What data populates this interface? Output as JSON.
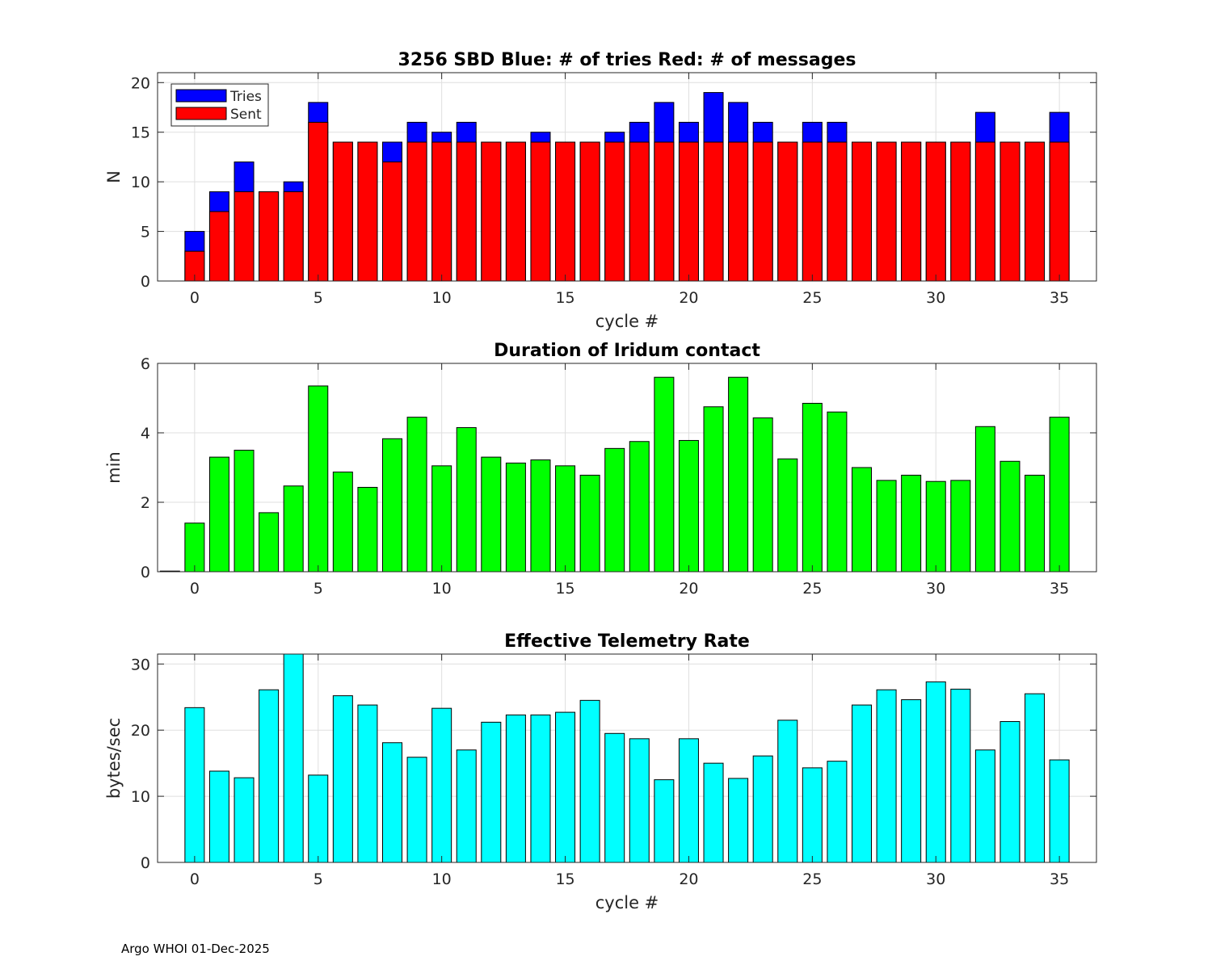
{
  "figure": {
    "footer": "Argo WHOI 01-Dec-2025"
  },
  "chart_data": [
    {
      "type": "bar",
      "stacked_overlay": true,
      "title": "3256 SBD  Blue: # of tries   Red: # of messages",
      "xlabel": "cycle #",
      "ylabel": "N",
      "xlim": [
        -1.5,
        36.5
      ],
      "ylim": [
        0,
        21
      ],
      "xticks": [
        0,
        5,
        10,
        15,
        20,
        25,
        30,
        35
      ],
      "yticks": [
        0,
        5,
        10,
        15,
        20
      ],
      "grid": true,
      "legend": {
        "placement": "top-left",
        "entries": [
          "Tries",
          "Sent"
        ]
      },
      "x": [
        0,
        1,
        2,
        3,
        4,
        5,
        6,
        7,
        8,
        9,
        10,
        11,
        12,
        13,
        14,
        15,
        16,
        17,
        18,
        19,
        20,
        21,
        22,
        23,
        24,
        25,
        26,
        27,
        28,
        29,
        30,
        31,
        32,
        33,
        34,
        35
      ],
      "series": [
        {
          "name": "Tries",
          "color": "#0000ff",
          "values": [
            5,
            9,
            12,
            9,
            10,
            18,
            14,
            14,
            14,
            16,
            15,
            16,
            14,
            14,
            15,
            14,
            14,
            15,
            16,
            18,
            16,
            19,
            18,
            16,
            14,
            16,
            16,
            14,
            14,
            14,
            14,
            14,
            17,
            14,
            14,
            17
          ]
        },
        {
          "name": "Sent",
          "color": "#ff0000",
          "values": [
            3,
            7,
            9,
            9,
            9,
            16,
            14,
            14,
            12,
            14,
            14,
            14,
            14,
            14,
            14,
            14,
            14,
            14,
            14,
            14,
            14,
            14,
            14,
            14,
            14,
            14,
            14,
            14,
            14,
            14,
            14,
            14,
            14,
            14,
            14,
            14
          ]
        }
      ]
    },
    {
      "type": "bar",
      "title": "Duration of Iridum contact",
      "xlabel": "",
      "ylabel": "min",
      "xlim": [
        -1.5,
        36.5
      ],
      "ylim": [
        0,
        6
      ],
      "xticks": [
        0,
        5,
        10,
        15,
        20,
        25,
        30,
        35
      ],
      "yticks": [
        0,
        2,
        4,
        6
      ],
      "grid": true,
      "x": [
        -1,
        0,
        1,
        2,
        3,
        4,
        5,
        6,
        7,
        8,
        9,
        10,
        11,
        12,
        13,
        14,
        15,
        16,
        17,
        18,
        19,
        20,
        21,
        22,
        23,
        24,
        25,
        26,
        27,
        28,
        29,
        30,
        31,
        32,
        33,
        34,
        35
      ],
      "series": [
        {
          "name": "duration",
          "color": "#00ff00",
          "values": [
            0,
            1.4,
            3.3,
            3.5,
            1.7,
            2.47,
            5.35,
            2.87,
            2.43,
            3.83,
            4.45,
            3.05,
            4.15,
            3.3,
            3.13,
            3.22,
            3.05,
            2.78,
            3.55,
            3.75,
            5.6,
            3.78,
            4.75,
            5.6,
            4.43,
            3.25,
            4.85,
            4.6,
            3.0,
            2.63,
            2.78,
            2.6,
            2.63,
            4.18,
            3.18,
            2.78,
            4.45
          ]
        }
      ]
    },
    {
      "type": "bar",
      "title": "Effective Telemetry Rate",
      "xlabel": "cycle #",
      "ylabel": "bytes/sec",
      "xlim": [
        -1.5,
        36.5
      ],
      "ylim": [
        0,
        31.5
      ],
      "xticks": [
        0,
        5,
        10,
        15,
        20,
        25,
        30,
        35
      ],
      "yticks": [
        0,
        10,
        20,
        30
      ],
      "grid": true,
      "x": [
        0,
        1,
        2,
        3,
        4,
        5,
        6,
        7,
        8,
        9,
        10,
        11,
        12,
        13,
        14,
        15,
        16,
        17,
        18,
        19,
        20,
        21,
        22,
        23,
        24,
        25,
        26,
        27,
        28,
        29,
        30,
        31,
        32,
        33,
        34,
        35
      ],
      "series": [
        {
          "name": "rate",
          "color": "#00ffff",
          "values": [
            23.4,
            13.8,
            12.8,
            26.1,
            31.5,
            13.2,
            25.2,
            23.8,
            18.1,
            15.9,
            23.3,
            17.0,
            21.2,
            22.3,
            22.3,
            22.7,
            24.5,
            19.5,
            18.7,
            12.5,
            18.7,
            15.0,
            12.7,
            16.1,
            21.5,
            14.3,
            15.3,
            23.8,
            26.1,
            24.6,
            27.3,
            26.2,
            17.0,
            21.3,
            25.5,
            15.5
          ]
        }
      ]
    }
  ]
}
